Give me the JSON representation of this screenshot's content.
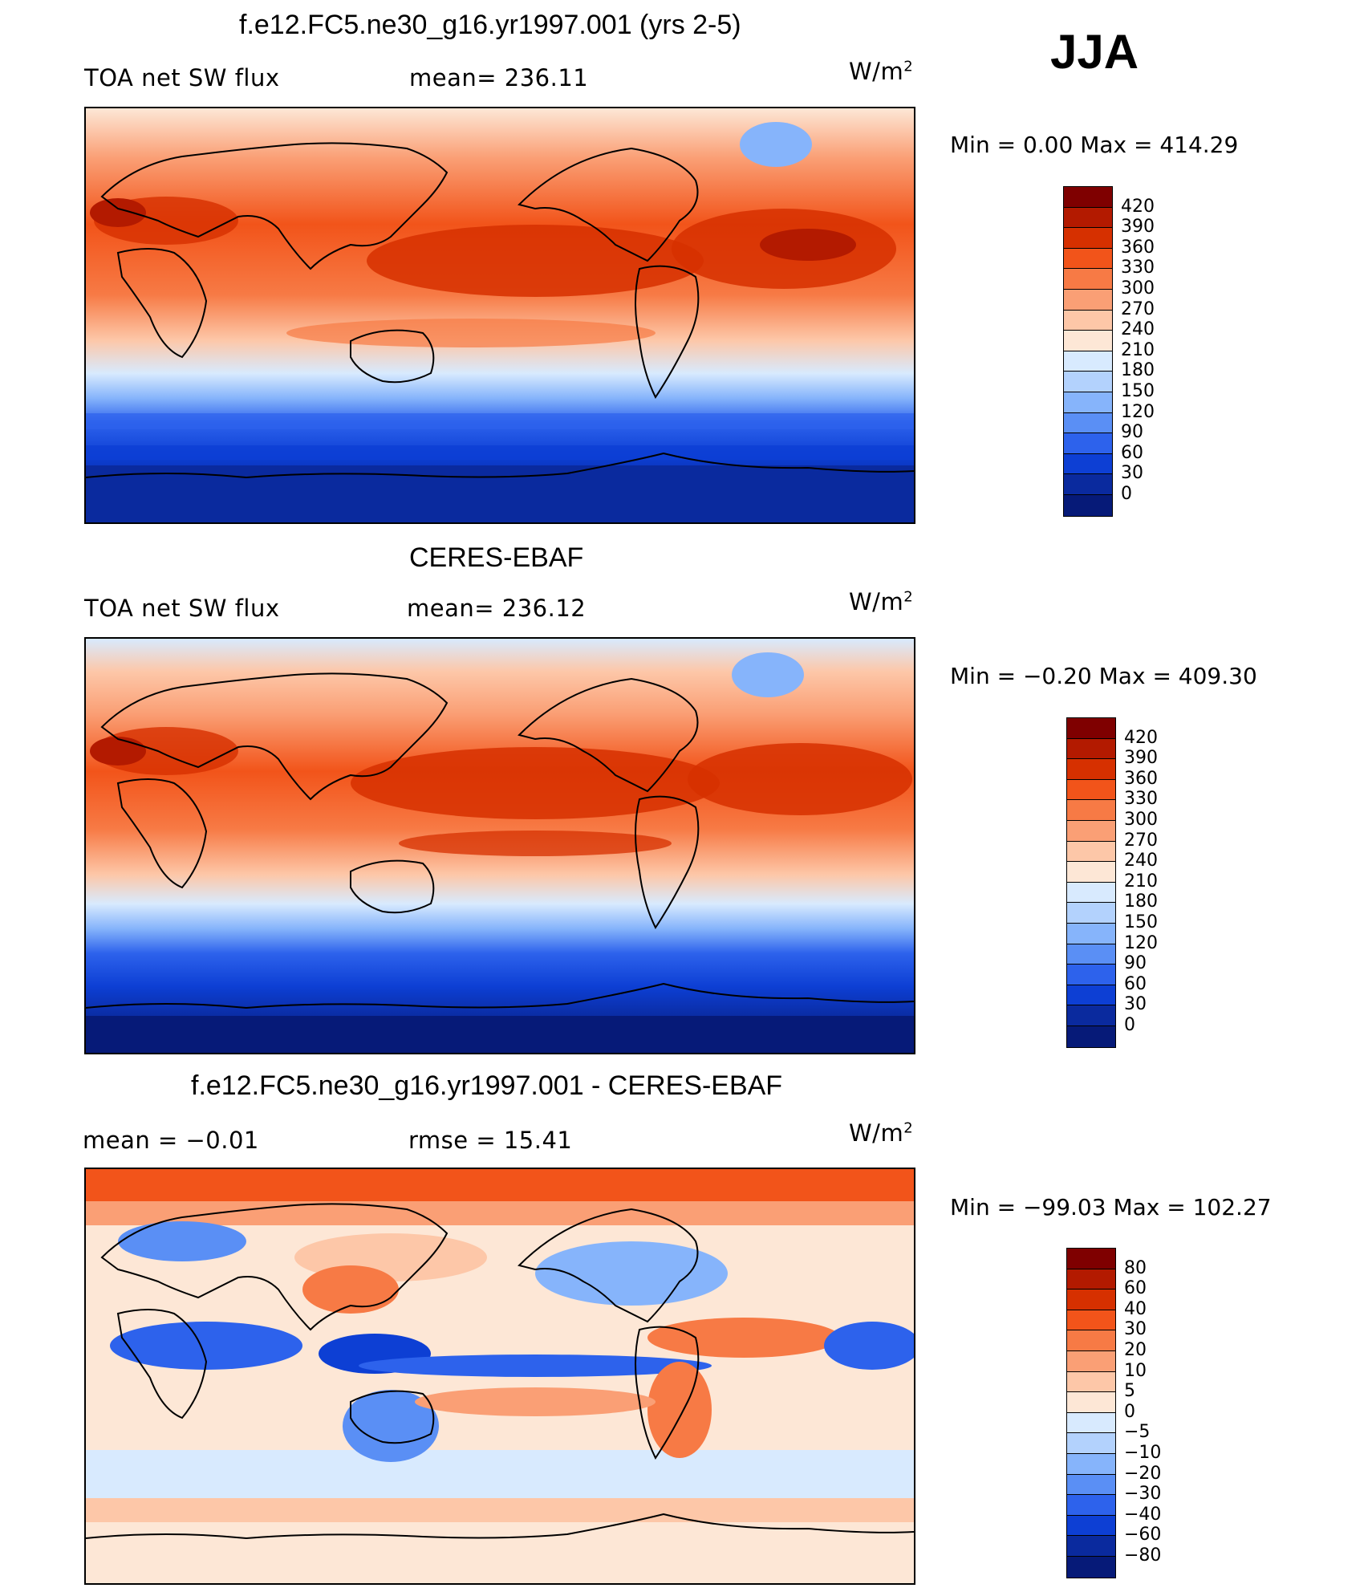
{
  "season": "JJA",
  "panels": [
    {
      "title": "f.e12.FC5.ne30_g16.yr1997.001 (yrs 2-5)",
      "left_label": "TOA net SW flux",
      "stat_label": "mean= 236.11",
      "units_main": "W/m",
      "units_sup": "2",
      "minmax": "Min =    0.00 Max = 414.29",
      "colorbar": {
        "labels": [
          "420",
          "390",
          "360",
          "330",
          "300",
          "270",
          "240",
          "210",
          "180",
          "150",
          "120",
          "90",
          "60",
          "30",
          "0"
        ],
        "colors": [
          "#7f0000",
          "#b31a00",
          "#d63000",
          "#f2541a",
          "#f77a45",
          "#fa9f75",
          "#fdc7a8",
          "#fde7d6",
          "#d8eafe",
          "#b3d2fd",
          "#86b4fb",
          "#5a8ff5",
          "#2d62ec",
          "#0d3fd4",
          "#0a2a9e",
          "#061a78"
        ]
      }
    },
    {
      "title": "CERES-EBAF",
      "left_label": "TOA net SW flux",
      "stat_label": "mean= 236.12",
      "units_main": "W/m",
      "units_sup": "2",
      "minmax": "Min =   −0.20 Max = 409.30",
      "colorbar": {
        "labels": [
          "420",
          "390",
          "360",
          "330",
          "300",
          "270",
          "240",
          "210",
          "180",
          "150",
          "120",
          "90",
          "60",
          "30",
          "0"
        ],
        "colors": [
          "#7f0000",
          "#b31a00",
          "#d63000",
          "#f2541a",
          "#f77a45",
          "#fa9f75",
          "#fdc7a8",
          "#fde7d6",
          "#d8eafe",
          "#b3d2fd",
          "#86b4fb",
          "#5a8ff5",
          "#2d62ec",
          "#0d3fd4",
          "#0a2a9e",
          "#061a78"
        ]
      }
    },
    {
      "title": "f.e12.FC5.ne30_g16.yr1997.001 - CERES-EBAF",
      "left_label": "mean =    −0.01",
      "stat_label": "rmse =    15.41",
      "units_main": "W/m",
      "units_sup": "2",
      "minmax": "Min = −99.03 Max = 102.27",
      "colorbar": {
        "labels": [
          "80",
          "60",
          "40",
          "30",
          "20",
          "10",
          "5",
          "0",
          "−5",
          "−10",
          "−20",
          "−30",
          "−40",
          "−60",
          "−80"
        ],
        "colors": [
          "#7f0000",
          "#b31a00",
          "#d63000",
          "#f2541a",
          "#f77a45",
          "#fa9f75",
          "#fdc7a8",
          "#fde7d6",
          "#d8eafe",
          "#b3d2fd",
          "#86b4fb",
          "#5a8ff5",
          "#2d62ec",
          "#0d3fd4",
          "#0a2a9e",
          "#061a78"
        ]
      }
    }
  ]
}
